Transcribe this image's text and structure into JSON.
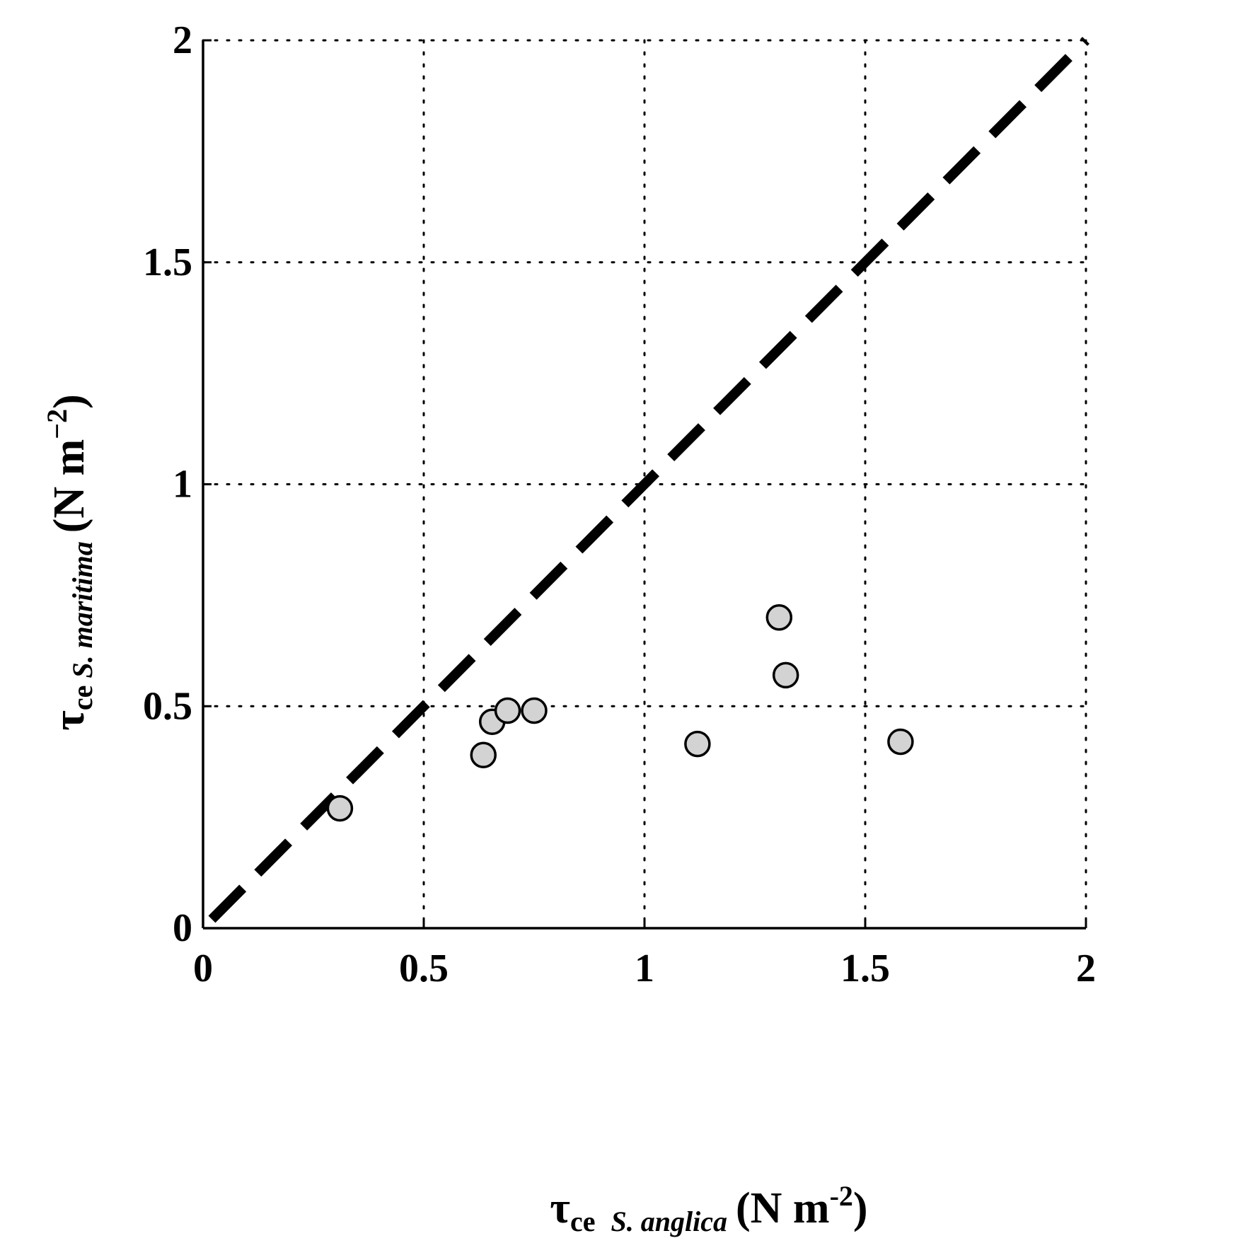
{
  "chart_data": {
    "type": "scatter",
    "title": "",
    "xlim": [
      0,
      2
    ],
    "ylim": [
      0,
      2
    ],
    "x_ticks": [
      0,
      0.5,
      1,
      1.5,
      2
    ],
    "y_ticks": [
      0,
      0.5,
      1,
      1.5,
      2
    ],
    "x_tick_labels": [
      "0",
      "0.5",
      "1",
      "1.5",
      "2"
    ],
    "y_tick_labels": [
      "0",
      "0.5",
      "1",
      "1.5",
      "2"
    ],
    "grid": true,
    "grid_style": "dotted",
    "xlabel": {
      "symbol": "τ",
      "subscript": "ce",
      "species": "S. anglica",
      "unit_open": "(N m",
      "unit_exponent": "-2",
      "unit_close": ")"
    },
    "ylabel": {
      "symbol": "τ",
      "subscript": "ce",
      "species": "S. maritima",
      "unit_open": "(N m",
      "unit_exponent": "−2",
      "unit_close": ")"
    },
    "reference_line": {
      "kind": "1:1",
      "style": "dashed",
      "color": "#000000",
      "x": [
        0.02,
        2.0
      ],
      "y": [
        0.02,
        2.0
      ]
    },
    "series": [
      {
        "marker": "circle",
        "fill": "#d3d3d3",
        "edge": "#000000",
        "points": [
          {
            "x": 0.31,
            "y": 0.27
          },
          {
            "x": 0.635,
            "y": 0.39
          },
          {
            "x": 0.655,
            "y": 0.465
          },
          {
            "x": 0.69,
            "y": 0.49
          },
          {
            "x": 0.75,
            "y": 0.49
          },
          {
            "x": 1.12,
            "y": 0.415
          },
          {
            "x": 1.305,
            "y": 0.7
          },
          {
            "x": 1.32,
            "y": 0.57
          },
          {
            "x": 1.58,
            "y": 0.42
          }
        ]
      }
    ]
  }
}
